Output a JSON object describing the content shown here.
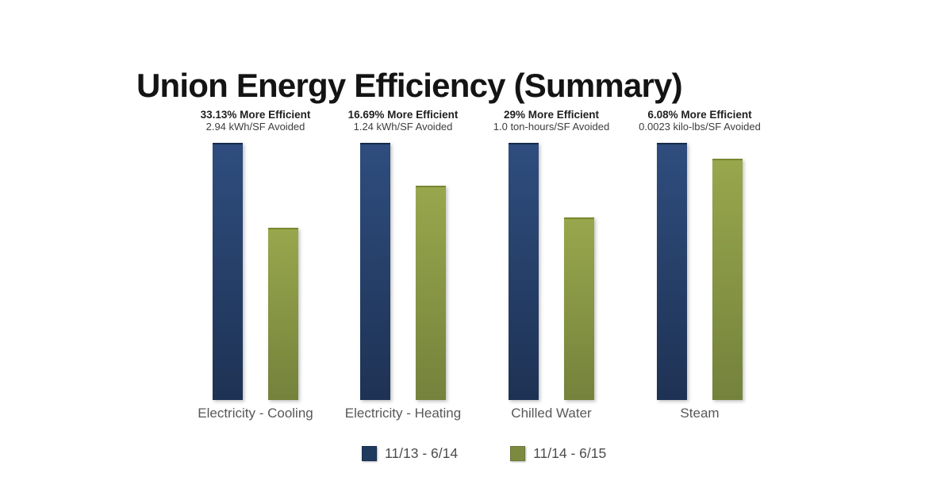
{
  "colors": {
    "bar_blue_top": "#2e4d7e",
    "bar_blue_bottom": "#1e3254",
    "bar_green_top": "#98a74c",
    "bar_green_bottom": "#74823c",
    "legend_blue": "#1e3a5f",
    "legend_green": "#7c8a3f",
    "text_dark": "#1f1f1f",
    "text_gray": "#57585a"
  },
  "chart_data": {
    "type": "bar",
    "title": "Union Energy Efficiency (Summary)",
    "categories": [
      "Electricity - Cooling",
      "Electricity - Heating",
      "Chilled Water",
      "Steam"
    ],
    "series": [
      {
        "name": "11/13 - 6/14",
        "color": "#1e3a5f",
        "values": [
          100,
          100,
          100,
          100
        ]
      },
      {
        "name": "11/14 - 6/15",
        "color": "#7c8a3f",
        "values": [
          66.87,
          83.31,
          71.0,
          93.92
        ]
      }
    ],
    "annotations": [
      {
        "line1": "33.13% More Efficient",
        "line2": "2.94 kWh/SF Avoided"
      },
      {
        "line1": "16.69% More Efficient",
        "line2": "1.24 kWh/SF Avoided"
      },
      {
        "line1": "29% More Efficient",
        "line2": "1.0 ton-hours/SF Avoided"
      },
      {
        "line1": "6.08% More Efficient",
        "line2": "0.0023 kilo-lbs/SF Avoided"
      }
    ],
    "value_scale": "relative usage per category, baseline period = 100",
    "ylim": [
      0,
      100
    ],
    "grid": false,
    "axes_hidden": true,
    "legend_position": "bottom"
  }
}
